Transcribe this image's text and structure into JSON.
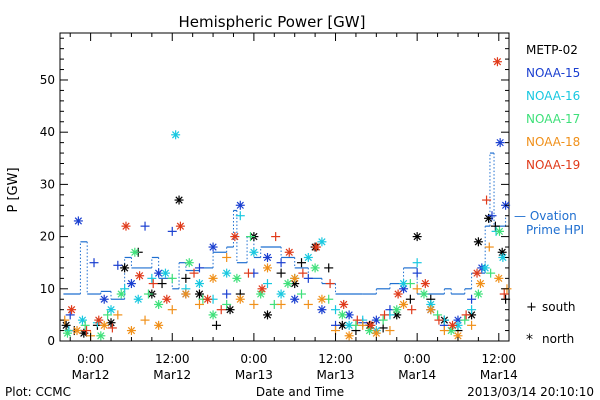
{
  "footer": {
    "plot_credit": "Plot: CCMC",
    "timestamp": "2013/03/14 20:10:10"
  },
  "chart_data": {
    "type": "scatter",
    "title": "Hemispheric Power [GW]",
    "xlabel": "Date and Time",
    "ylabel": "P [GW]",
    "x_unit": "hours since 2013-03-12 00:00 UT",
    "xlim": [
      -4.5,
      61.5
    ],
    "ylim": [
      0,
      59
    ],
    "y_ticks": [
      0,
      10,
      20,
      30,
      40,
      50
    ],
    "x_ticks": [
      {
        "x": 0,
        "line1": "0:00",
        "line2": "Mar12"
      },
      {
        "x": 12,
        "line1": "12:00",
        "line2": "Mar12"
      },
      {
        "x": 24,
        "line1": "0:00",
        "line2": "Mar13"
      },
      {
        "x": 36,
        "line1": "12:00",
        "line2": "Mar13"
      },
      {
        "x": 48,
        "line1": "0:00",
        "line2": "Mar14"
      },
      {
        "x": 60,
        "line1": "12:00",
        "line2": "Mar14"
      }
    ],
    "grid": false,
    "legend_position": "right",
    "satellites": [
      {
        "name": "METP-02",
        "color": "#000000"
      },
      {
        "name": "NOAA-15",
        "color": "#1a3fd0"
      },
      {
        "name": "NOAA-16",
        "color": "#18c8e0"
      },
      {
        "name": "NOAA-17",
        "color": "#3ee07a"
      },
      {
        "name": "NOAA-18",
        "color": "#f0901a"
      },
      {
        "name": "NOAA-19",
        "color": "#e03a1a"
      }
    ],
    "ovation": {
      "label_line1": "— Ovation",
      "label_line2": "Prime HPI",
      "color": "#1f6fd0",
      "steps": [
        [
          -4,
          9
        ],
        [
          -1.5,
          19
        ],
        [
          -0.5,
          9
        ],
        [
          1.5,
          9.5
        ],
        [
          3,
          8
        ],
        [
          5,
          16
        ],
        [
          6,
          14
        ],
        [
          9,
          16
        ],
        [
          10,
          12
        ],
        [
          12,
          10
        ],
        [
          13,
          15
        ],
        [
          14,
          13.5
        ],
        [
          16,
          14
        ],
        [
          18,
          17
        ],
        [
          20,
          18
        ],
        [
          21,
          25
        ],
        [
          21.5,
          15
        ],
        [
          23,
          20
        ],
        [
          24,
          16
        ],
        [
          25,
          18
        ],
        [
          28,
          16
        ],
        [
          30,
          14
        ],
        [
          32,
          12
        ],
        [
          34,
          11
        ],
        [
          36,
          9
        ],
        [
          40,
          9
        ],
        [
          42,
          10
        ],
        [
          44,
          11
        ],
        [
          46,
          14
        ],
        [
          48,
          9
        ],
        [
          52,
          10
        ],
        [
          53,
          9
        ],
        [
          55,
          10
        ],
        [
          56,
          13
        ],
        [
          58,
          22
        ],
        [
          58.7,
          36
        ],
        [
          59.3,
          22
        ],
        [
          61,
          24
        ]
      ]
    },
    "markers": {
      "south_symbol": "+",
      "south_label": "south",
      "north_symbol": "*",
      "north_label": "north"
    },
    "series": [
      {
        "name": "METP-02",
        "points": [
          [
            -3.6,
            3,
            "n"
          ],
          [
            -2.4,
            2,
            "s"
          ],
          [
            -1,
            1.5,
            "n"
          ],
          [
            1,
            3,
            "s"
          ],
          [
            3,
            3.5,
            "n"
          ],
          [
            5,
            14,
            "n"
          ],
          [
            7,
            17,
            "s"
          ],
          [
            9,
            9,
            "n"
          ],
          [
            10.5,
            11,
            "s"
          ],
          [
            13,
            27,
            "n"
          ],
          [
            14,
            12,
            "s"
          ],
          [
            16,
            9,
            "n"
          ],
          [
            18.5,
            3,
            "s"
          ],
          [
            20.5,
            6,
            "n"
          ],
          [
            22,
            9,
            "s"
          ],
          [
            24,
            20,
            "n"
          ],
          [
            26,
            5,
            "n"
          ],
          [
            28,
            13,
            "s"
          ],
          [
            30,
            11,
            "n"
          ],
          [
            31,
            15,
            "s"
          ],
          [
            33,
            18,
            "n"
          ],
          [
            35,
            14,
            "s"
          ],
          [
            37,
            3,
            "n"
          ],
          [
            39,
            2,
            "s"
          ],
          [
            41,
            3,
            "n"
          ],
          [
            43,
            2.5,
            "s"
          ],
          [
            45,
            5,
            "n"
          ],
          [
            47,
            8,
            "s"
          ],
          [
            48,
            20,
            "n"
          ],
          [
            50,
            8,
            "s"
          ],
          [
            52,
            4,
            "n"
          ],
          [
            54,
            2,
            "s"
          ],
          [
            56,
            5,
            "n"
          ],
          [
            57,
            19,
            "n"
          ],
          [
            58.5,
            23.5,
            "n"
          ],
          [
            59.5,
            22,
            "s"
          ],
          [
            60.5,
            17,
            "n"
          ],
          [
            61,
            8,
            "s"
          ]
        ]
      },
      {
        "name": "NOAA-15",
        "points": [
          [
            -3,
            5,
            "s"
          ],
          [
            -1.8,
            23,
            "n"
          ],
          [
            0.5,
            15,
            "s"
          ],
          [
            2,
            8,
            "n"
          ],
          [
            4,
            14.5,
            "s"
          ],
          [
            6,
            11,
            "n"
          ],
          [
            8,
            22,
            "s"
          ],
          [
            10,
            13,
            "n"
          ],
          [
            12,
            21,
            "s"
          ],
          [
            14,
            9,
            "n"
          ],
          [
            16,
            14,
            "s"
          ],
          [
            18,
            18,
            "n"
          ],
          [
            20,
            9,
            "s"
          ],
          [
            22,
            26,
            "n"
          ],
          [
            24,
            13,
            "s"
          ],
          [
            26,
            16,
            "n"
          ],
          [
            28,
            15,
            "s"
          ],
          [
            30,
            8,
            "n"
          ],
          [
            32,
            12,
            "s"
          ],
          [
            34,
            6,
            "n"
          ],
          [
            36,
            3,
            "s"
          ],
          [
            38,
            5,
            "n"
          ],
          [
            40,
            3.5,
            "s"
          ],
          [
            42,
            4,
            "n"
          ],
          [
            44,
            6,
            "s"
          ],
          [
            46,
            10,
            "n"
          ],
          [
            48,
            13,
            "s"
          ],
          [
            50,
            6,
            "n"
          ],
          [
            52,
            3,
            "s"
          ],
          [
            54,
            4,
            "n"
          ],
          [
            56,
            8,
            "s"
          ],
          [
            57.5,
            14,
            "n"
          ],
          [
            59,
            24,
            "s"
          ],
          [
            60.2,
            38,
            "n"
          ],
          [
            61,
            26,
            "n"
          ]
        ]
      },
      {
        "name": "NOAA-16",
        "points": [
          [
            -3.2,
            2,
            "s"
          ],
          [
            -1.2,
            4,
            "n"
          ],
          [
            1,
            3.5,
            "s"
          ],
          [
            3,
            6,
            "n"
          ],
          [
            5,
            10,
            "s"
          ],
          [
            7,
            8,
            "n"
          ],
          [
            9,
            12,
            "s"
          ],
          [
            11,
            13,
            "n"
          ],
          [
            12.5,
            39.5,
            "n"
          ],
          [
            14,
            10,
            "s"
          ],
          [
            16,
            11,
            "n"
          ],
          [
            18,
            8,
            "s"
          ],
          [
            20,
            13,
            "n"
          ],
          [
            22,
            24,
            "s"
          ],
          [
            24,
            17,
            "n"
          ],
          [
            26,
            11,
            "s"
          ],
          [
            28,
            9,
            "n"
          ],
          [
            30,
            12,
            "s"
          ],
          [
            32,
            16,
            "n"
          ],
          [
            34,
            19,
            "n"
          ],
          [
            36,
            6,
            "s"
          ],
          [
            38,
            3,
            "n"
          ],
          [
            40,
            4,
            "s"
          ],
          [
            42,
            2,
            "n"
          ],
          [
            44,
            5,
            "s"
          ],
          [
            46,
            11,
            "n"
          ],
          [
            48,
            15,
            "s"
          ],
          [
            50,
            7,
            "n"
          ],
          [
            52,
            4,
            "s"
          ],
          [
            54,
            3,
            "n"
          ],
          [
            56,
            6,
            "s"
          ],
          [
            58,
            14,
            "n"
          ],
          [
            59.6,
            21,
            "s"
          ],
          [
            60.6,
            16,
            "n"
          ]
        ]
      },
      {
        "name": "NOAA-17",
        "points": [
          [
            -3.4,
            1.5,
            "n"
          ],
          [
            -0.8,
            3,
            "s"
          ],
          [
            1.5,
            1,
            "n"
          ],
          [
            2.5,
            5,
            "s"
          ],
          [
            4.5,
            9,
            "n"
          ],
          [
            6.5,
            17,
            "n"
          ],
          [
            8.5,
            9,
            "s"
          ],
          [
            10,
            7,
            "n"
          ],
          [
            12,
            12,
            "s"
          ],
          [
            14.5,
            15,
            "n"
          ],
          [
            16.5,
            8,
            "s"
          ],
          [
            18,
            5,
            "n"
          ],
          [
            20,
            7,
            "s"
          ],
          [
            21.5,
            12,
            "n"
          ],
          [
            23.5,
            20,
            "s"
          ],
          [
            25,
            9,
            "n"
          ],
          [
            27,
            7,
            "s"
          ],
          [
            29,
            11,
            "n"
          ],
          [
            31,
            9,
            "s"
          ],
          [
            33,
            14,
            "n"
          ],
          [
            35,
            8,
            "s"
          ],
          [
            37,
            5,
            "n"
          ],
          [
            39,
            3,
            "s"
          ],
          [
            41,
            2,
            "n"
          ],
          [
            43,
            4,
            "s"
          ],
          [
            45,
            6,
            "n"
          ],
          [
            47,
            11,
            "s"
          ],
          [
            49,
            9,
            "n"
          ],
          [
            51,
            5,
            "s"
          ],
          [
            53,
            2,
            "n"
          ],
          [
            55,
            4,
            "s"
          ],
          [
            57,
            9,
            "n"
          ],
          [
            58.8,
            13,
            "s"
          ],
          [
            60.1,
            21,
            "n"
          ]
        ]
      },
      {
        "name": "NOAA-18",
        "points": [
          [
            -3.8,
            4,
            "s"
          ],
          [
            -2,
            2,
            "n"
          ],
          [
            0,
            1,
            "s"
          ],
          [
            2,
            3,
            "n"
          ],
          [
            4,
            5,
            "s"
          ],
          [
            6,
            2,
            "n"
          ],
          [
            8,
            4,
            "s"
          ],
          [
            10,
            3,
            "n"
          ],
          [
            12,
            6,
            "s"
          ],
          [
            14,
            9,
            "n"
          ],
          [
            16,
            7,
            "s"
          ],
          [
            18,
            12,
            "n"
          ],
          [
            20,
            16,
            "s"
          ],
          [
            22,
            8,
            "n"
          ],
          [
            24,
            7,
            "s"
          ],
          [
            26,
            14,
            "n"
          ],
          [
            28,
            7,
            "s"
          ],
          [
            30,
            12,
            "n"
          ],
          [
            32,
            7,
            "s"
          ],
          [
            34,
            8,
            "n"
          ],
          [
            36,
            2,
            "s"
          ],
          [
            38,
            1,
            "n"
          ],
          [
            40,
            3,
            "s"
          ],
          [
            42,
            1.5,
            "n"
          ],
          [
            44,
            2,
            "s"
          ],
          [
            46,
            7,
            "n"
          ],
          [
            48,
            10,
            "s"
          ],
          [
            50,
            6,
            "n"
          ],
          [
            52,
            2,
            "s"
          ],
          [
            54,
            1,
            "n"
          ],
          [
            56,
            3,
            "s"
          ],
          [
            57.3,
            11,
            "n"
          ],
          [
            58.6,
            18,
            "s"
          ],
          [
            60,
            12,
            "n"
          ],
          [
            61.2,
            10,
            "s"
          ]
        ]
      },
      {
        "name": "NOAA-19",
        "points": [
          [
            -2.8,
            6,
            "n"
          ],
          [
            -0.6,
            2,
            "s"
          ],
          [
            1.2,
            4,
            "n"
          ],
          [
            3.2,
            2.5,
            "s"
          ],
          [
            5.2,
            22,
            "n"
          ],
          [
            7.2,
            12.5,
            "n"
          ],
          [
            9.2,
            11,
            "s"
          ],
          [
            11.2,
            8,
            "n"
          ],
          [
            13.2,
            22,
            "n"
          ],
          [
            15.2,
            13,
            "s"
          ],
          [
            17.2,
            8,
            "n"
          ],
          [
            19.2,
            6,
            "s"
          ],
          [
            21.2,
            20,
            "n"
          ],
          [
            23.2,
            13,
            "s"
          ],
          [
            25.2,
            10,
            "n"
          ],
          [
            27.2,
            20,
            "s"
          ],
          [
            29.2,
            17,
            "n"
          ],
          [
            31.2,
            13,
            "s"
          ],
          [
            33.2,
            18,
            "n"
          ],
          [
            35.2,
            11,
            "s"
          ],
          [
            37.2,
            7,
            "n"
          ],
          [
            39.2,
            4,
            "s"
          ],
          [
            41.2,
            3,
            "n"
          ],
          [
            43.2,
            5,
            "s"
          ],
          [
            45.2,
            9,
            "n"
          ],
          [
            47.2,
            6,
            "s"
          ],
          [
            49.2,
            11,
            "n"
          ],
          [
            51.2,
            4,
            "s"
          ],
          [
            53.2,
            3,
            "n"
          ],
          [
            55.2,
            5,
            "s"
          ],
          [
            56.8,
            13,
            "n"
          ],
          [
            58.2,
            27,
            "s"
          ],
          [
            59.8,
            53.5,
            "n"
          ],
          [
            60.8,
            9,
            "s"
          ]
        ]
      }
    ]
  }
}
